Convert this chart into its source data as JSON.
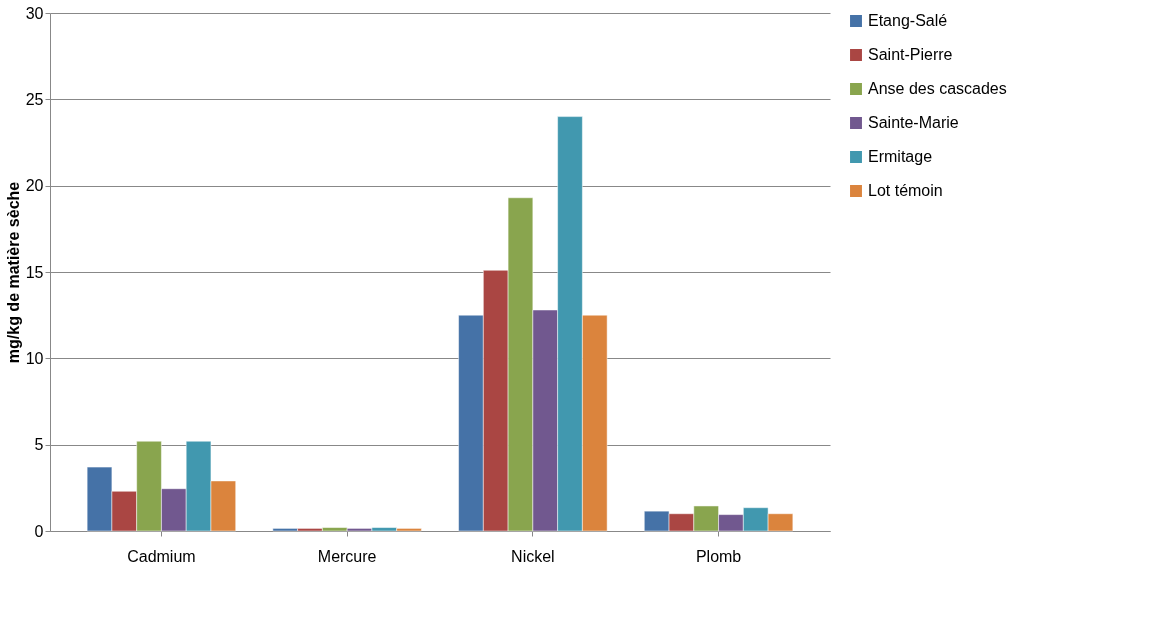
{
  "chart_data": {
    "type": "bar",
    "ylabel": "mg/kg de matière sèche",
    "categories": [
      "Cadmium",
      "Mercure",
      "Nickel",
      "Plomb"
    ],
    "series": [
      {
        "name": "Etang-Salé",
        "color": "#4572a7",
        "values": [
          3.7,
          0.15,
          12.5,
          1.15
        ]
      },
      {
        "name": "Saint-Pierre",
        "color": "#aa4643",
        "values": [
          2.3,
          0.15,
          15.1,
          1.0
        ]
      },
      {
        "name": "Anse des cascades",
        "color": "#89a54e",
        "values": [
          5.2,
          0.2,
          19.3,
          1.45
        ]
      },
      {
        "name": "Sainte-Marie",
        "color": "#71588f",
        "values": [
          2.45,
          0.15,
          12.8,
          0.95
        ]
      },
      {
        "name": "Ermitage",
        "color": "#4198af",
        "values": [
          5.2,
          0.2,
          24.0,
          1.35
        ]
      },
      {
        "name": "Lot témoin",
        "color": "#db843d",
        "values": [
          2.9,
          0.15,
          12.5,
          1.0
        ]
      }
    ],
    "ylim": [
      0,
      30
    ],
    "yticks": [
      0,
      5,
      10,
      15,
      20,
      25,
      30
    ],
    "grid": "y",
    "legend": "right"
  }
}
